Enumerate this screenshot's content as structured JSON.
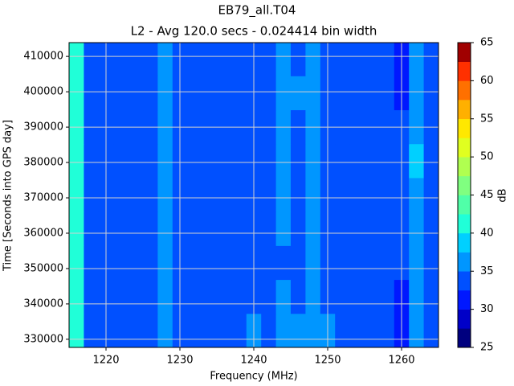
{
  "chart_data": {
    "type": "heatmap",
    "title": "EB79_all.T04",
    "subtitle": "L2 - Avg 120.0 secs - 0.024414 bin width",
    "x_label": "Frequency (MHz)",
    "y_label": "Time [Seconds into GPS day]",
    "xlim": [
      1215,
      1265
    ],
    "xticks": [
      1220,
      1230,
      1240,
      1250,
      1260
    ],
    "ylim": [
      327700,
      413900
    ],
    "yticks": [
      330000,
      340000,
      350000,
      360000,
      370000,
      380000,
      390000,
      400000,
      410000
    ],
    "grid": true,
    "xbins": [
      1215,
      1217,
      1219,
      1221,
      1223,
      1225,
      1227,
      1229,
      1231,
      1233,
      1235,
      1237,
      1239,
      1241,
      1243,
      1245,
      1247,
      1249,
      1251,
      1253,
      1255,
      1257,
      1259,
      1261,
      1263,
      1265
    ],
    "ybins": [
      327700,
      337300,
      346900,
      356500,
      366100,
      375700,
      385300,
      394900,
      404500,
      413900
    ],
    "z": [
      [
        41,
        34,
        33,
        33,
        33,
        33,
        36,
        33,
        33,
        33,
        34,
        33,
        35,
        33,
        35,
        35,
        36,
        35,
        33,
        33,
        33,
        33,
        31,
        37,
        34
      ],
      [
        41,
        34,
        33,
        33,
        33,
        33,
        36,
        33,
        33,
        33,
        33,
        33,
        34,
        33,
        35,
        34,
        36,
        34,
        33,
        33,
        33,
        33,
        31,
        37,
        34
      ],
      [
        41,
        34,
        33,
        33,
        33,
        33,
        36,
        33,
        33,
        33,
        33,
        33,
        34,
        33,
        34,
        34,
        36,
        34,
        33,
        33,
        33,
        33,
        33,
        37,
        34
      ],
      [
        41,
        34,
        33,
        33,
        33,
        33,
        36,
        33,
        33,
        33,
        33,
        33,
        34,
        33,
        35,
        34,
        35,
        34,
        33,
        33,
        33,
        33,
        33,
        37,
        34
      ],
      [
        41,
        34,
        33,
        33,
        33,
        33,
        36,
        33,
        33,
        33,
        33,
        33,
        34,
        33,
        35,
        34,
        36,
        34,
        33,
        33,
        33,
        33,
        33,
        37,
        34
      ],
      [
        42,
        34,
        33,
        33,
        33,
        33,
        36,
        33,
        33,
        33,
        33,
        33,
        34,
        33,
        36,
        34,
        36,
        33,
        33,
        33,
        33,
        33,
        33,
        38,
        34
      ],
      [
        42,
        34,
        33,
        33,
        33,
        33,
        36,
        33,
        33,
        33,
        33,
        33,
        34,
        33,
        35,
        34,
        36,
        34,
        33,
        33,
        33,
        33,
        33,
        37,
        34
      ],
      [
        41,
        34,
        33,
        33,
        33,
        33,
        36,
        33,
        33,
        33,
        33,
        33,
        34,
        33,
        36,
        35,
        36,
        34,
        33,
        33,
        33,
        33,
        31,
        37,
        34
      ],
      [
        40,
        34,
        33,
        33,
        33,
        33,
        36,
        33,
        33,
        33,
        33,
        33,
        34,
        33,
        35,
        34,
        35,
        34,
        33,
        33,
        33,
        33,
        31,
        37,
        34
      ]
    ],
    "colorbar": {
      "label": "dB",
      "levels": [
        25,
        27.5,
        30,
        32.5,
        35,
        37.5,
        40,
        42.5,
        45,
        47.5,
        50,
        52.5,
        55,
        57.5,
        60,
        62.5,
        65
      ],
      "colors": [
        "#00007f",
        "#0000c8",
        "#0018ff",
        "#0050ff",
        "#0096ff",
        "#00d0ff",
        "#20ffd8",
        "#50ffa8",
        "#80ff80",
        "#b0ff50",
        "#e0ff20",
        "#ffe800",
        "#ffb000",
        "#ff7000",
        "#ff3000",
        "#a00000"
      ],
      "ticks": [
        25,
        30,
        35,
        40,
        45,
        50,
        55,
        60,
        65
      ]
    }
  }
}
